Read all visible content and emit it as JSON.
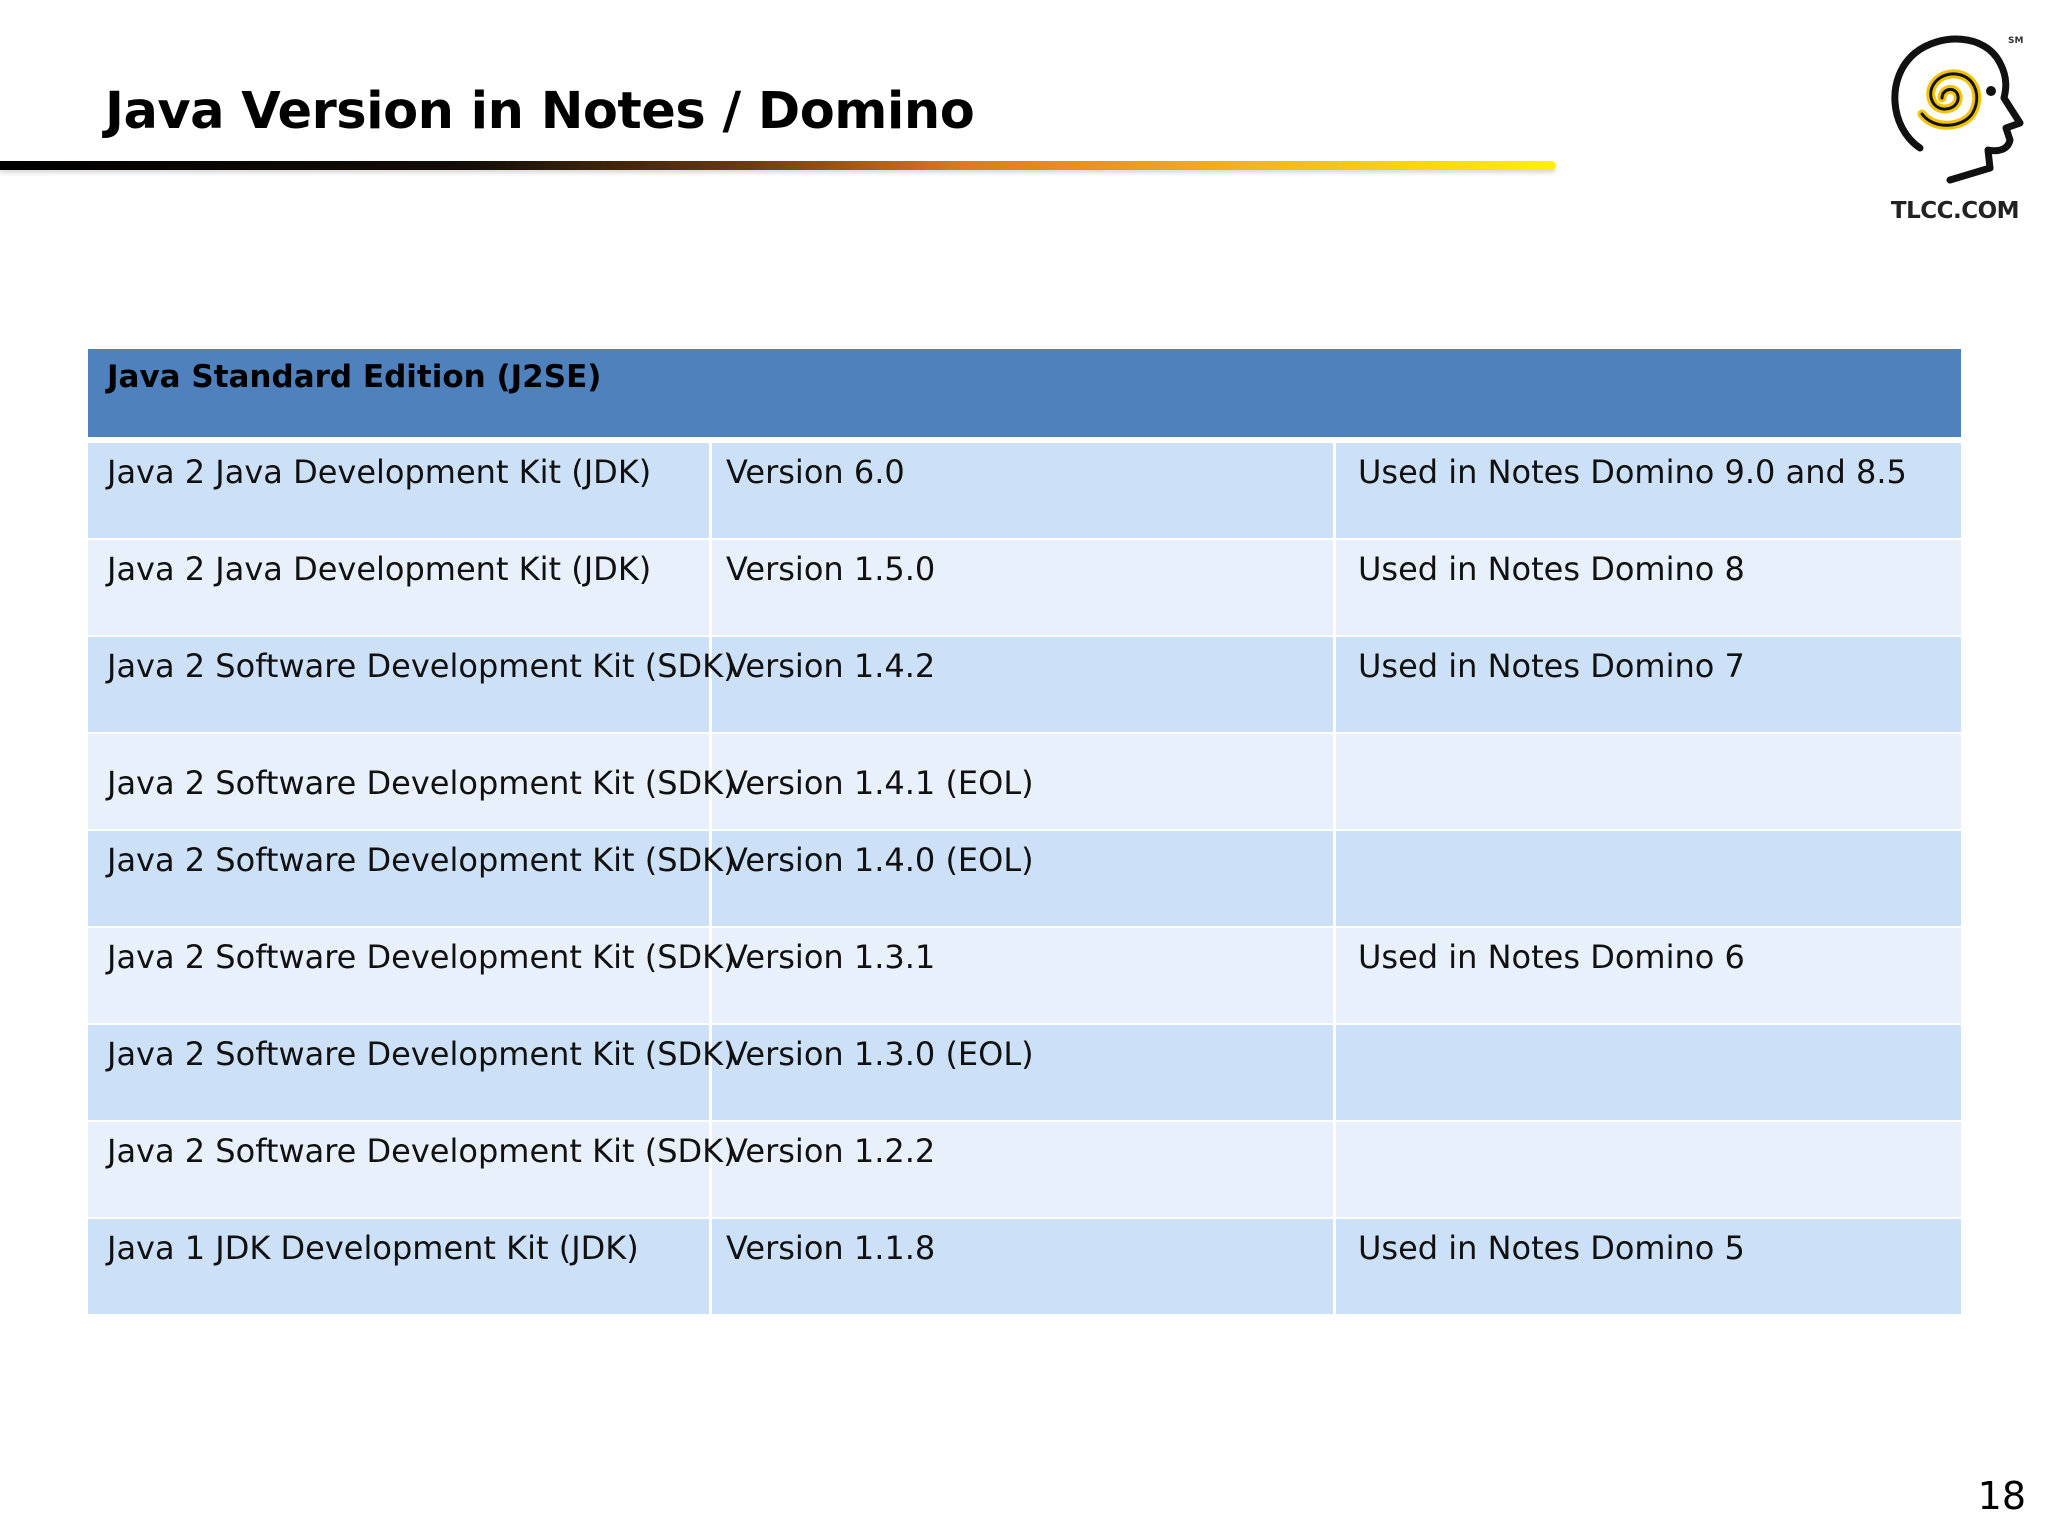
{
  "slide": {
    "title": "Java Version in Notes / Domino",
    "page_number": "18"
  },
  "logo": {
    "text": "TLCC.COM",
    "mark": "SM",
    "icon": "head-spiral-logo-icon"
  },
  "table": {
    "header": "Java Standard Edition (J2SE)",
    "rows": [
      {
        "kit": "Java 2 Java Development Kit (JDK)",
        "version": "Version 6.0",
        "usage": "Used in Notes Domino 9.0 and 8.5"
      },
      {
        "kit": "Java 2 Java Development Kit (JDK)",
        "version": "Version 1.5.0",
        "usage": "Used in Notes Domino 8"
      },
      {
        "kit": "Java 2 Software Development Kit (SDK)",
        "version": "Version 1.4.2",
        "usage": "Used in Notes Domino 7"
      },
      {
        "kit": "Java 2 Software Development Kit (SDK)",
        "version": "Version 1.4.1 (EOL)",
        "usage": ""
      },
      {
        "kit": "Java 2 Software Development Kit (SDK)",
        "version": "Version 1.4.0 (EOL)",
        "usage": ""
      },
      {
        "kit": "Java 2 Software Development Kit (SDK)",
        "version": "Version 1.3.1",
        "usage": "Used in Notes Domino 6"
      },
      {
        "kit": "Java 2 Software Development Kit (SDK)",
        "version": "Version 1.3.0 (EOL)",
        "usage": ""
      },
      {
        "kit": "Java 2 Software Development Kit (SDK)",
        "version": "Version 1.2.2",
        "usage": ""
      },
      {
        "kit": "Java 1 JDK Development Kit (JDK)",
        "version": "Version 1.1.8",
        "usage": "Used in Notes Domino 5"
      }
    ]
  },
  "colors": {
    "header_bg": "#4f81bd",
    "row_dark": "#cce1f7",
    "row_light": "#e8f0fb"
  }
}
